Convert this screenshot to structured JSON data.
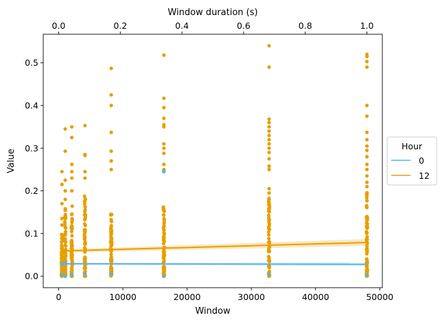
{
  "chart_data": {
    "type": "scatter",
    "xlabel": "Window",
    "ylabel": "Value",
    "top_xlabel": "Window duration (s)",
    "xlim": [
      -2400,
      50400
    ],
    "ylim": [
      -0.027,
      0.567
    ],
    "top_xlim": [
      -0.05,
      1.05
    ],
    "x_ticks": [
      0,
      10000,
      20000,
      30000,
      40000,
      50000
    ],
    "x_tick_labels": [
      "0",
      "10000",
      "20000",
      "30000",
      "40000",
      "50000"
    ],
    "y_ticks": [
      0.0,
      0.1,
      0.2,
      0.3,
      0.4,
      0.5
    ],
    "y_tick_labels": [
      "0.0",
      "0.1",
      "0.2",
      "0.3",
      "0.4",
      "0.5"
    ],
    "top_x_ticks": [
      0.0,
      0.2,
      0.4,
      0.6,
      0.8,
      1.0
    ],
    "top_x_tick_labels": [
      "0.0",
      "0.2",
      "0.4",
      "0.6",
      "0.8",
      "1.0"
    ],
    "grid": false,
    "legend": {
      "title": "Hour",
      "placement": "right",
      "entries": [
        "0",
        "12"
      ]
    },
    "windows": [
      512,
      1024,
      2048,
      4096,
      8192,
      16384,
      32768,
      48000
    ],
    "series": [
      {
        "name": "0",
        "color": "#56b4e9",
        "points": [
          {
            "x": 512,
            "y": 0.003
          },
          {
            "x": 512,
            "y": 0.028
          },
          {
            "x": 1024,
            "y": 0.0
          },
          {
            "x": 1024,
            "y": 0.031
          },
          {
            "x": 2048,
            "y": 0.004
          },
          {
            "x": 4096,
            "y": 0.005
          },
          {
            "x": 8192,
            "y": 0.007
          },
          {
            "x": 16384,
            "y": 0.0
          },
          {
            "x": 16384,
            "y": 0.245
          },
          {
            "x": 32768,
            "y": 0.004
          },
          {
            "x": 48000,
            "y": 0.002
          }
        ],
        "fit": {
          "x": [
            512,
            48000
          ],
          "y": [
            0.029,
            0.028
          ],
          "band": 0.002
        }
      },
      {
        "name": "12",
        "color": "#e69f00",
        "points": [
          {
            "x": 512,
            "y": 0.245
          },
          {
            "x": 512,
            "y": 0.215
          },
          {
            "x": 512,
            "y": 0.17
          },
          {
            "x": 512,
            "y": 0.135
          },
          {
            "x": 512,
            "y": 0.12
          },
          {
            "x": 1024,
            "y": 0.345
          },
          {
            "x": 1024,
            "y": 0.293
          },
          {
            "x": 1024,
            "y": 0.225
          },
          {
            "x": 1024,
            "y": 0.2
          },
          {
            "x": 1024,
            "y": 0.18
          },
          {
            "x": 2048,
            "y": 0.35
          },
          {
            "x": 2048,
            "y": 0.325
          },
          {
            "x": 2048,
            "y": 0.262
          },
          {
            "x": 2048,
            "y": 0.245
          },
          {
            "x": 2048,
            "y": 0.23
          },
          {
            "x": 2048,
            "y": 0.2
          },
          {
            "x": 4096,
            "y": 0.353
          },
          {
            "x": 4096,
            "y": 0.285
          },
          {
            "x": 4096,
            "y": 0.283
          },
          {
            "x": 4096,
            "y": 0.245
          },
          {
            "x": 4096,
            "y": 0.23
          },
          {
            "x": 8192,
            "y": 0.487
          },
          {
            "x": 8192,
            "y": 0.425
          },
          {
            "x": 8192,
            "y": 0.4
          },
          {
            "x": 8192,
            "y": 0.337
          },
          {
            "x": 8192,
            "y": 0.293
          },
          {
            "x": 8192,
            "y": 0.27
          },
          {
            "x": 8192,
            "y": 0.25
          },
          {
            "x": 16384,
            "y": 0.518
          },
          {
            "x": 16384,
            "y": 0.417
          },
          {
            "x": 16384,
            "y": 0.395
          },
          {
            "x": 16384,
            "y": 0.37
          },
          {
            "x": 16384,
            "y": 0.355
          },
          {
            "x": 16384,
            "y": 0.35
          },
          {
            "x": 16384,
            "y": 0.31
          },
          {
            "x": 16384,
            "y": 0.3
          },
          {
            "x": 16384,
            "y": 0.288
          },
          {
            "x": 16384,
            "y": 0.262
          },
          {
            "x": 16384,
            "y": 0.25
          },
          {
            "x": 32768,
            "y": 0.54
          },
          {
            "x": 32768,
            "y": 0.49
          },
          {
            "x": 32768,
            "y": 0.368
          },
          {
            "x": 32768,
            "y": 0.36
          },
          {
            "x": 32768,
            "y": 0.35
          },
          {
            "x": 32768,
            "y": 0.34
          },
          {
            "x": 32768,
            "y": 0.33
          },
          {
            "x": 32768,
            "y": 0.32
          },
          {
            "x": 32768,
            "y": 0.31
          },
          {
            "x": 32768,
            "y": 0.3
          },
          {
            "x": 32768,
            "y": 0.29
          },
          {
            "x": 32768,
            "y": 0.275
          },
          {
            "x": 32768,
            "y": 0.258
          },
          {
            "x": 32768,
            "y": 0.25
          },
          {
            "x": 32768,
            "y": 0.205
          },
          {
            "x": 32768,
            "y": 0.195
          },
          {
            "x": 48000,
            "y": 0.52
          },
          {
            "x": 48000,
            "y": 0.515
          },
          {
            "x": 48000,
            "y": 0.503
          },
          {
            "x": 48000,
            "y": 0.49
          },
          {
            "x": 48000,
            "y": 0.4
          },
          {
            "x": 48000,
            "y": 0.375
          },
          {
            "x": 48000,
            "y": 0.337
          },
          {
            "x": 48000,
            "y": 0.32
          },
          {
            "x": 48000,
            "y": 0.305
          },
          {
            "x": 48000,
            "y": 0.295
          },
          {
            "x": 48000,
            "y": 0.28
          },
          {
            "x": 48000,
            "y": 0.262
          },
          {
            "x": 48000,
            "y": 0.25
          },
          {
            "x": 48000,
            "y": 0.235
          },
          {
            "x": 48000,
            "y": 0.22
          },
          {
            "x": 48000,
            "y": 0.21
          }
        ],
        "dense_range": [
          {
            "x": 512,
            "lo": 0.0,
            "hi": 0.105
          },
          {
            "x": 1024,
            "lo": 0.0,
            "hi": 0.165
          },
          {
            "x": 2048,
            "lo": 0.0,
            "hi": 0.175
          },
          {
            "x": 4096,
            "lo": 0.0,
            "hi": 0.19
          },
          {
            "x": 8192,
            "lo": 0.0,
            "hi": 0.15
          },
          {
            "x": 16384,
            "lo": 0.0,
            "hi": 0.165
          },
          {
            "x": 32768,
            "lo": 0.0,
            "hi": 0.185
          },
          {
            "x": 48000,
            "lo": 0.0,
            "hi": 0.2
          }
        ],
        "fit": {
          "x": [
            512,
            48000
          ],
          "y": [
            0.059,
            0.079
          ],
          "band": 0.004
        }
      }
    ]
  }
}
